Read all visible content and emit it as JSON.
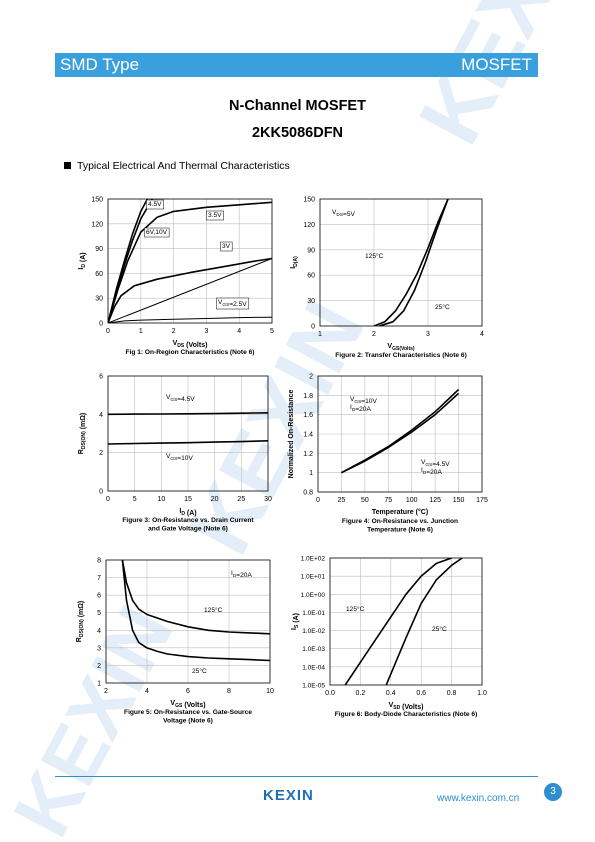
{
  "header": {
    "left": "SMD Type",
    "right": "MOSFET"
  },
  "title": {
    "line1": "N-Channel MOSFET",
    "line2": "2KK5086DFN"
  },
  "section_title": "Typical Electrical And Thermal Characteristics",
  "footer": {
    "logo": "KEXIN",
    "url": "www.kexin.com.cn",
    "page": "3"
  },
  "colors": {
    "brand_blue": "#3aa0dd",
    "footer_blue": "#2e8fd0",
    "watermark": "#e3eef8"
  },
  "chart_data": [
    {
      "id": "fig1",
      "type": "line",
      "caption": "Fig 1: On-Region Characteristics (Note 6)",
      "xlabel": "V_DS (Volts)",
      "ylabel": "I_D (A)",
      "xlim": [
        0,
        5
      ],
      "ylim": [
        0,
        150
      ],
      "xticks": [
        "0",
        "1",
        "2",
        "3",
        "4",
        "5"
      ],
      "yticks": [
        "0",
        "30",
        "60",
        "90",
        "120",
        "150"
      ],
      "series": [
        {
          "name": "6V,10V",
          "x": [
            0,
            0.25,
            0.5,
            0.75,
            1.0,
            1.2
          ],
          "y": [
            0,
            40,
            75,
            108,
            135,
            150
          ]
        },
        {
          "name": "4.5V",
          "x": [
            0,
            0.25,
            0.5,
            0.75,
            1.0,
            1.35
          ],
          "y": [
            0,
            37,
            70,
            100,
            126,
            150
          ]
        },
        {
          "name": "3.5V",
          "x": [
            0,
            0.3,
            0.6,
            1.0,
            1.5,
            2.0,
            3.0,
            4.0,
            5.0
          ],
          "y": [
            0,
            40,
            75,
            110,
            128,
            135,
            140,
            143,
            146
          ]
        },
        {
          "name": "3V",
          "x": [
            0,
            0.2,
            0.4,
            0.8,
            1.5,
            2.5,
            3.5,
            4.5,
            5.0
          ],
          "y": [
            0,
            20,
            33,
            45,
            53,
            61,
            68,
            75,
            78
          ]
        },
        {
          "name": "",
          "x": [
            0,
            5
          ],
          "y": [
            0,
            78
          ]
        },
        {
          "name": "V_GS=2.5V",
          "x": [
            0,
            0.5,
            1,
            2,
            3,
            4,
            5
          ],
          "y": [
            0,
            2.5,
            3.5,
            4.5,
            5.5,
            6.5,
            7
          ]
        }
      ],
      "annotations": [
        "4.5V",
        "3.5V",
        "6V,10V",
        "3V",
        "V_GS=2.5V"
      ]
    },
    {
      "id": "fig2",
      "type": "line",
      "caption": "Figure 2: Transfer Characteristics (Note 6)",
      "xlabel": "V_GS(Volts)",
      "ylabel": "I_D(A)",
      "xlim": [
        1,
        4
      ],
      "ylim": [
        0,
        150
      ],
      "xticks": [
        "1",
        "2",
        "3",
        "4"
      ],
      "yticks": [
        "0",
        "30",
        "60",
        "90",
        "120",
        "150"
      ],
      "series": [
        {
          "name": "125°C",
          "x": [
            2.0,
            2.2,
            2.4,
            2.6,
            2.8,
            3.0,
            3.2,
            3.37
          ],
          "y": [
            0,
            5,
            18,
            38,
            62,
            92,
            125,
            150
          ]
        },
        {
          "name": "25°C",
          "x": [
            2.1,
            2.35,
            2.55,
            2.75,
            2.95,
            3.15,
            3.37
          ],
          "y": [
            0,
            5,
            18,
            42,
            75,
            112,
            150
          ]
        }
      ],
      "annotations": [
        "V_DS=5V",
        "125°C",
        "25°C"
      ]
    },
    {
      "id": "fig3",
      "type": "line",
      "caption": "Figure 3: On-Resistance vs. Drain Current and Gate Voltage (Note 6)",
      "xlabel": "I_D (A)",
      "ylabel": "R_DS(ON) (mΩ)",
      "xlim": [
        0,
        30
      ],
      "ylim": [
        0,
        6
      ],
      "xticks": [
        "0",
        "5",
        "10",
        "15",
        "20",
        "25",
        "30"
      ],
      "yticks": [
        "0",
        "2",
        "4",
        "6"
      ],
      "series": [
        {
          "name": "V_GS=4.5V",
          "x": [
            0,
            5,
            10,
            15,
            20,
            25,
            30
          ],
          "y": [
            4.0,
            4.01,
            4.02,
            4.03,
            4.04,
            4.06,
            4.08
          ]
        },
        {
          "name": "V_GS=10V",
          "x": [
            0,
            5,
            10,
            15,
            20,
            25,
            30
          ],
          "y": [
            2.45,
            2.48,
            2.5,
            2.52,
            2.55,
            2.58,
            2.62
          ]
        }
      ],
      "annotations": [
        "V_GS=4.5V",
        "V_GS=10V"
      ]
    },
    {
      "id": "fig4",
      "type": "line",
      "caption": "Figure 4: On-Resistance vs. Junction Temperature (Note 6)",
      "xlabel": "Temperature (°C)",
      "ylabel": "Normalized On-Resistance",
      "xlim": [
        0,
        175
      ],
      "ylim": [
        0.8,
        2
      ],
      "xticks": [
        "0",
        "25",
        "50",
        "75",
        "100",
        "125",
        "150",
        "175"
      ],
      "yticks": [
        "0.8",
        "1",
        "1.2",
        "1.4",
        "1.6",
        "1.8",
        "2"
      ],
      "series": [
        {
          "name": "V_GS=10V, I_D=20A",
          "x": [
            25,
            50,
            75,
            100,
            125,
            150
          ],
          "y": [
            1.0,
            1.13,
            1.27,
            1.44,
            1.63,
            1.86
          ]
        },
        {
          "name": "V_GS=4.5V, I_D=20A",
          "x": [
            25,
            50,
            75,
            100,
            125,
            150
          ],
          "y": [
            1.0,
            1.12,
            1.26,
            1.42,
            1.6,
            1.82
          ]
        }
      ],
      "annotations": [
        "V_GS=10V",
        "I_D=20A",
        "V_GS=4.5V",
        "I_D=20A"
      ]
    },
    {
      "id": "fig5",
      "type": "line",
      "caption": "Figure 5: On-Resistance vs. Gate-Source Voltage (Note 6)",
      "xlabel": "V_GS (Volts)",
      "ylabel": "R_DS(ON) (mΩ)",
      "xlim": [
        2,
        10
      ],
      "ylim": [
        1,
        8
      ],
      "xticks": [
        "2",
        "4",
        "6",
        "8",
        "10"
      ],
      "yticks": [
        "1",
        "2",
        "3",
        "4",
        "5",
        "6",
        "7",
        "8"
      ],
      "series": [
        {
          "name": "125°C",
          "x": [
            2.8,
            3.0,
            3.3,
            3.6,
            4.0,
            4.5,
            5.0,
            6.0,
            7.0,
            8.0,
            9.0,
            10.0
          ],
          "y": [
            8,
            6.7,
            5.7,
            5.2,
            4.9,
            4.7,
            4.5,
            4.2,
            4.0,
            3.9,
            3.85,
            3.8
          ]
        },
        {
          "name": "25°C",
          "x": [
            2.8,
            3.0,
            3.3,
            3.6,
            4.0,
            4.5,
            5.0,
            6.0,
            7.0,
            8.0,
            9.0,
            10.0
          ],
          "y": [
            8,
            5.7,
            4.0,
            3.3,
            3.0,
            2.8,
            2.65,
            2.5,
            2.42,
            2.38,
            2.33,
            2.28
          ]
        }
      ],
      "annotations": [
        "I_D=20A",
        "125°C",
        "25°C"
      ]
    },
    {
      "id": "fig6",
      "type": "line",
      "caption": "Figure 6: Body-Diode Characteristics (Note 6)",
      "xlabel": "V_SD (Volts)",
      "ylabel": "I_S (A)",
      "xlim": [
        0,
        1
      ],
      "ylim_log10": [
        -5,
        2
      ],
      "log_y": true,
      "xticks": [
        "0.0",
        "0.2",
        "0.4",
        "0.6",
        "0.8",
        "1.0"
      ],
      "yticks": [
        "1.0E-05",
        "1.0E-04",
        "1.0E-03",
        "1.0E-02",
        "1.0E-01",
        "1.0E+00",
        "1.0E+01",
        "1.0E+02"
      ],
      "series": [
        {
          "name": "125°C",
          "x": [
            0.1,
            0.3,
            0.5,
            0.6,
            0.7,
            0.8
          ],
          "log10_y": [
            -5,
            -2.5,
            0,
            1.0,
            1.7,
            2.0
          ]
        },
        {
          "name": "25°C",
          "x": [
            0.37,
            0.5,
            0.6,
            0.7,
            0.8,
            0.87
          ],
          "log10_y": [
            -5,
            -2.4,
            -0.5,
            0.8,
            1.6,
            2.0
          ]
        }
      ],
      "annotations": [
        "125°C",
        "25°C"
      ]
    }
  ]
}
